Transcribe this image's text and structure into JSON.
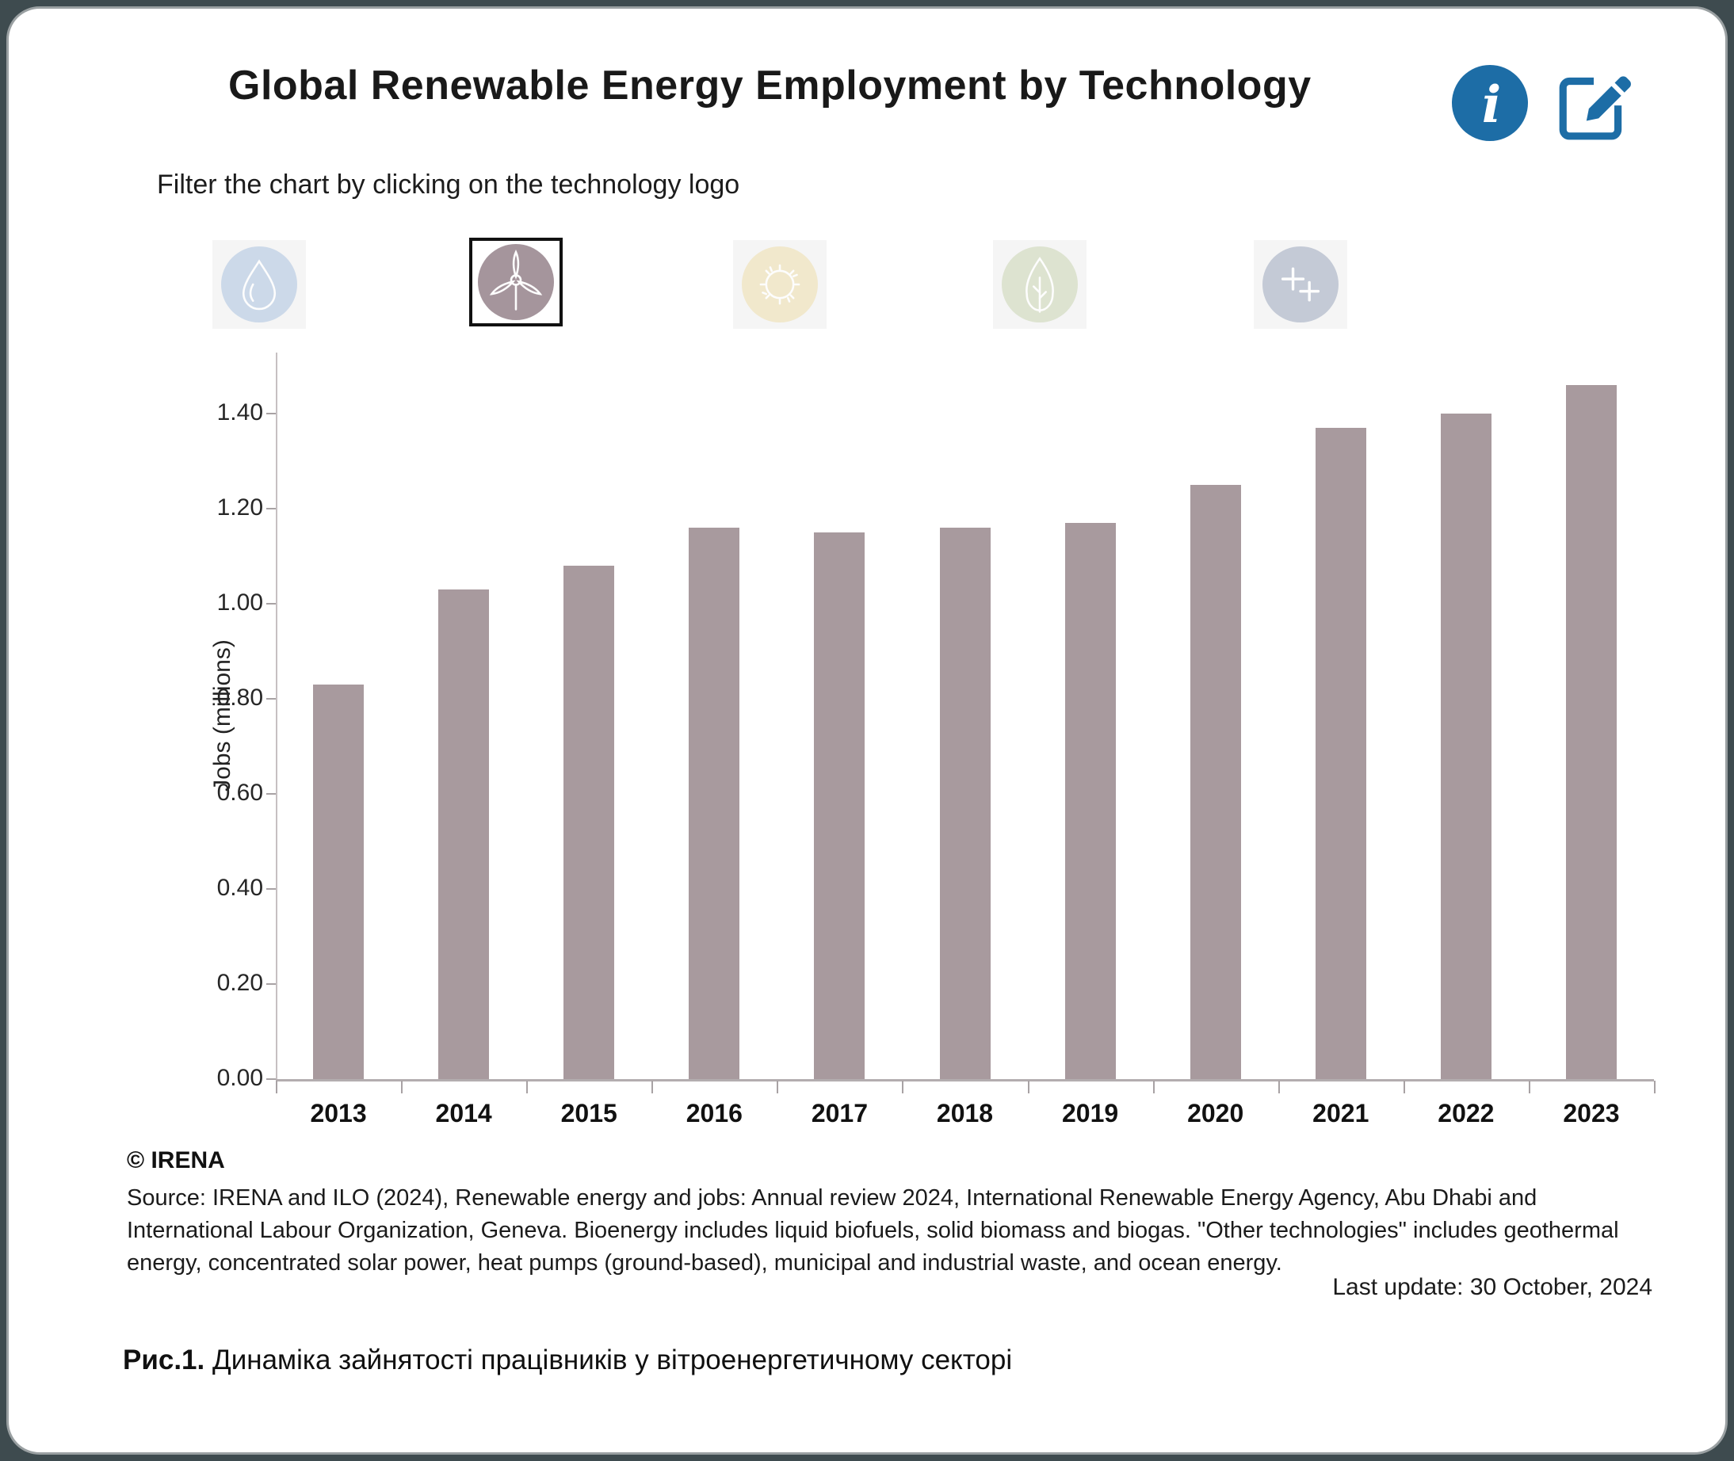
{
  "header": {
    "title": "Global Renewable Energy Employment by Technology",
    "subtitle": "Filter the chart by clicking on the technology logo"
  },
  "icons": {
    "info": "info-icon",
    "edit": "edit-note-icon"
  },
  "filters": [
    {
      "name": "hydropower",
      "icon": "water-drop-icon",
      "circle_color": "#ccd9e9",
      "selected": false
    },
    {
      "name": "wind",
      "icon": "wind-turbine-icon",
      "circle_color": "#a5959c",
      "selected": true
    },
    {
      "name": "solar",
      "icon": "sun-icon",
      "circle_color": "#f1e8cc",
      "selected": false
    },
    {
      "name": "bioenergy",
      "icon": "leaf-icon",
      "circle_color": "#dde3d0",
      "selected": false
    },
    {
      "name": "other-technologies",
      "icon": "plus-plus-icon",
      "circle_color": "#c4cad6",
      "selected": false
    }
  ],
  "chart_data": {
    "type": "bar",
    "title": "Global Renewable Energy Employment by Technology",
    "series_name": "Wind",
    "categories": [
      "2013",
      "2014",
      "2015",
      "2016",
      "2017",
      "2018",
      "2019",
      "2020",
      "2021",
      "2022",
      "2023"
    ],
    "values": [
      0.83,
      1.03,
      1.08,
      1.16,
      1.15,
      1.16,
      1.17,
      1.25,
      1.37,
      1.4,
      1.46
    ],
    "xlabel": "",
    "ylabel": "Jobs (millions)",
    "ylim": [
      0,
      1.53
    ],
    "yticks": [
      0,
      0.2,
      0.4,
      0.6,
      0.8,
      1.0,
      1.2,
      1.4
    ],
    "ytick_labels": [
      "0.00",
      "0.20",
      "0.40",
      "0.60",
      "0.80",
      "1.00",
      "1.20",
      "1.40"
    ],
    "grid": false,
    "legend": "none",
    "bar_color": "#a89a9e"
  },
  "colors": {
    "accent_blue": "#1d6da6",
    "bar": "#a89a9e",
    "page_background": "#3e4b4f",
    "card_background": "#ffffff"
  },
  "footer": {
    "copyright": "© IRENA",
    "source": "Source: IRENA and ILO (2024), Renewable energy and jobs: Annual review 2024, International Renewable Energy Agency, Abu Dhabi and International Labour Organization, Geneva. Bioenergy includes liquid biofuels, solid biomass and biogas. \"Other technologies\" includes geothermal energy, concentrated solar power, heat pumps (ground-based), municipal and industrial waste, and ocean energy.",
    "last_update": "Last update: 30 October, 2024"
  },
  "caption": {
    "label": "Рис.1.",
    "text": "Динаміка зайнятості працівників у вітроенергетичному секторі"
  }
}
